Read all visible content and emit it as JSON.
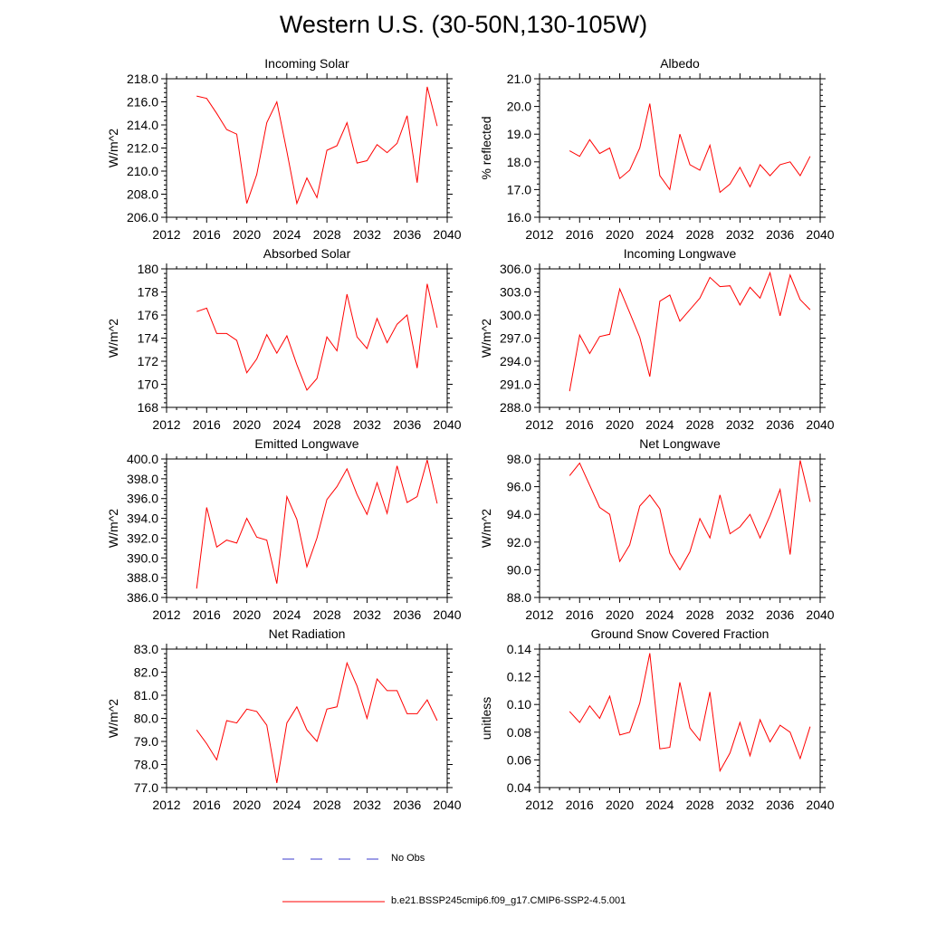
{
  "page": {
    "title": "Western U.S. (30-50N,130-105W)"
  },
  "legend": {
    "obs_label": "No Obs",
    "obs_color": "#3b3bcc",
    "model_label": "b.e21.BSSP245cmip6.f09_g17.CMIP6-SSP2-4.5.001",
    "model_color": "#ff0000"
  },
  "style": {
    "line_color": "#ff0000",
    "axis_color": "#000000"
  },
  "chart_data": [
    {
      "type": "line",
      "title": "Incoming Solar",
      "ylabel": "W/m^2",
      "xlim": [
        2012,
        2040
      ],
      "ylim": [
        206,
        218
      ],
      "xticks": [
        2012,
        2016,
        2020,
        2024,
        2028,
        2032,
        2036,
        2040
      ],
      "yticks": [
        206,
        208,
        210,
        212,
        214,
        216,
        218
      ],
      "ytick_decimals": 1,
      "x": [
        2015,
        2016,
        2017,
        2018,
        2019,
        2020,
        2021,
        2022,
        2023,
        2024,
        2025,
        2026,
        2027,
        2028,
        2029,
        2030,
        2031,
        2032,
        2033,
        2034,
        2035,
        2036,
        2037,
        2038,
        2039
      ],
      "series": [
        {
          "name": "b.e21.BSSP245cmip6.f09_g17.CMIP6-SSP2-4.5.001",
          "values": [
            216.5,
            216.3,
            215.0,
            213.6,
            213.2,
            207.2,
            209.7,
            214.2,
            216.0,
            211.7,
            207.2,
            209.4,
            207.7,
            211.8,
            212.2,
            214.2,
            210.7,
            210.9,
            212.3,
            211.6,
            212.4,
            214.8,
            209.0,
            217.3,
            213.9
          ]
        }
      ]
    },
    {
      "type": "line",
      "title": "Albedo",
      "ylabel": "% reflected",
      "xlim": [
        2012,
        2040
      ],
      "ylim": [
        16,
        21
      ],
      "xticks": [
        2012,
        2016,
        2020,
        2024,
        2028,
        2032,
        2036,
        2040
      ],
      "yticks": [
        16,
        17,
        18,
        19,
        20,
        21
      ],
      "ytick_decimals": 1,
      "x": [
        2015,
        2016,
        2017,
        2018,
        2019,
        2020,
        2021,
        2022,
        2023,
        2024,
        2025,
        2026,
        2027,
        2028,
        2029,
        2030,
        2031,
        2032,
        2033,
        2034,
        2035,
        2036,
        2037,
        2038,
        2039
      ],
      "series": [
        {
          "name": "b.e21.BSSP245cmip6.f09_g17.CMIP6-SSP2-4.5.001",
          "values": [
            18.4,
            18.2,
            18.8,
            18.3,
            18.5,
            17.4,
            17.7,
            18.5,
            20.1,
            17.5,
            17.0,
            19.0,
            17.9,
            17.7,
            18.6,
            16.9,
            17.2,
            17.8,
            17.1,
            17.9,
            17.5,
            17.9,
            18.0,
            17.5,
            18.2
          ]
        }
      ]
    },
    {
      "type": "line",
      "title": "Absorbed Solar",
      "ylabel": "W/m^2",
      "xlim": [
        2012,
        2040
      ],
      "ylim": [
        168,
        180
      ],
      "xticks": [
        2012,
        2016,
        2020,
        2024,
        2028,
        2032,
        2036,
        2040
      ],
      "yticks": [
        168,
        170,
        172,
        174,
        176,
        178,
        180
      ],
      "ytick_decimals": 0,
      "x": [
        2015,
        2016,
        2017,
        2018,
        2019,
        2020,
        2021,
        2022,
        2023,
        2024,
        2025,
        2026,
        2027,
        2028,
        2029,
        2030,
        2031,
        2032,
        2033,
        2034,
        2035,
        2036,
        2037,
        2038,
        2039
      ],
      "series": [
        {
          "name": "b.e21.BSSP245cmip6.f09_g17.CMIP6-SSP2-4.5.001",
          "values": [
            176.3,
            176.6,
            174.4,
            174.4,
            173.8,
            171.0,
            172.2,
            174.3,
            172.7,
            174.2,
            171.7,
            169.5,
            170.5,
            174.1,
            172.9,
            177.8,
            174.1,
            173.1,
            175.7,
            173.6,
            175.2,
            176.0,
            171.4,
            178.7,
            174.9
          ]
        }
      ]
    },
    {
      "type": "line",
      "title": "Incoming Longwave",
      "ylabel": "W/m^2",
      "xlim": [
        2012,
        2040
      ],
      "ylim": [
        288,
        306
      ],
      "xticks": [
        2012,
        2016,
        2020,
        2024,
        2028,
        2032,
        2036,
        2040
      ],
      "yticks": [
        288,
        291,
        294,
        297,
        300,
        303,
        306
      ],
      "ytick_decimals": 1,
      "x": [
        2015,
        2016,
        2017,
        2018,
        2019,
        2020,
        2021,
        2022,
        2023,
        2024,
        2025,
        2026,
        2027,
        2028,
        2029,
        2030,
        2031,
        2032,
        2033,
        2034,
        2035,
        2036,
        2037,
        2038,
        2039
      ],
      "series": [
        {
          "name": "b.e21.BSSP245cmip6.f09_g17.CMIP6-SSP2-4.5.001",
          "values": [
            290.1,
            297.4,
            295.0,
            297.2,
            297.5,
            303.4,
            300.3,
            297.1,
            292.0,
            301.8,
            302.6,
            299.2,
            300.7,
            302.2,
            304.9,
            303.7,
            303.8,
            301.3,
            303.6,
            302.2,
            305.5,
            299.9,
            305.2,
            302.0,
            300.7
          ]
        }
      ]
    },
    {
      "type": "line",
      "title": "Emitted Longwave",
      "ylabel": "W/m^2",
      "xlim": [
        2012,
        2040
      ],
      "ylim": [
        386,
        400
      ],
      "xticks": [
        2012,
        2016,
        2020,
        2024,
        2028,
        2032,
        2036,
        2040
      ],
      "yticks": [
        386,
        388,
        390,
        392,
        394,
        396,
        398,
        400
      ],
      "ytick_decimals": 1,
      "x": [
        2015,
        2016,
        2017,
        2018,
        2019,
        2020,
        2021,
        2022,
        2023,
        2024,
        2025,
        2026,
        2027,
        2028,
        2029,
        2030,
        2031,
        2032,
        2033,
        2034,
        2035,
        2036,
        2037,
        2038,
        2039
      ],
      "series": [
        {
          "name": "b.e21.BSSP245cmip6.f09_g17.CMIP6-SSP2-4.5.001",
          "values": [
            386.9,
            395.1,
            391.1,
            391.8,
            391.5,
            394.0,
            392.1,
            391.8,
            387.4,
            396.2,
            393.9,
            389.1,
            392.0,
            395.9,
            397.2,
            399.0,
            396.4,
            394.4,
            397.6,
            394.5,
            399.3,
            395.6,
            396.2,
            399.9,
            395.5
          ]
        }
      ]
    },
    {
      "type": "line",
      "title": "Net Longwave",
      "ylabel": "W/m^2",
      "xlim": [
        2012,
        2040
      ],
      "ylim": [
        88,
        98
      ],
      "xticks": [
        2012,
        2016,
        2020,
        2024,
        2028,
        2032,
        2036,
        2040
      ],
      "yticks": [
        88,
        90,
        92,
        94,
        96,
        98
      ],
      "ytick_decimals": 1,
      "x": [
        2015,
        2016,
        2017,
        2018,
        2019,
        2020,
        2021,
        2022,
        2023,
        2024,
        2025,
        2026,
        2027,
        2028,
        2029,
        2030,
        2031,
        2032,
        2033,
        2034,
        2035,
        2036,
        2037,
        2038,
        2039
      ],
      "series": [
        {
          "name": "b.e21.BSSP245cmip6.f09_g17.CMIP6-SSP2-4.5.001",
          "values": [
            96.8,
            97.7,
            96.1,
            94.5,
            94.0,
            90.6,
            91.8,
            94.6,
            95.4,
            94.4,
            91.2,
            90.0,
            91.3,
            93.7,
            92.3,
            95.4,
            92.6,
            93.1,
            94.0,
            92.3,
            93.9,
            95.8,
            91.1,
            97.9,
            94.9
          ]
        }
      ]
    },
    {
      "type": "line",
      "title": "Net Radiation",
      "ylabel": "W/m^2",
      "xlim": [
        2012,
        2040
      ],
      "ylim": [
        77,
        83
      ],
      "xticks": [
        2012,
        2016,
        2020,
        2024,
        2028,
        2032,
        2036,
        2040
      ],
      "yticks": [
        77,
        78,
        79,
        80,
        81,
        82,
        83
      ],
      "ytick_decimals": 1,
      "x": [
        2015,
        2016,
        2017,
        2018,
        2019,
        2020,
        2021,
        2022,
        2023,
        2024,
        2025,
        2026,
        2027,
        2028,
        2029,
        2030,
        2031,
        2032,
        2033,
        2034,
        2035,
        2036,
        2037,
        2038,
        2039
      ],
      "series": [
        {
          "name": "b.e21.BSSP245cmip6.f09_g17.CMIP6-SSP2-4.5.001",
          "values": [
            79.5,
            78.9,
            78.2,
            79.9,
            79.8,
            80.4,
            80.3,
            79.7,
            77.2,
            79.8,
            80.5,
            79.5,
            79.0,
            80.4,
            80.5,
            82.4,
            81.4,
            80.0,
            81.7,
            81.2,
            81.2,
            80.2,
            80.2,
            80.8,
            79.9
          ]
        }
      ]
    },
    {
      "type": "line",
      "title": "Ground Snow Covered Fraction",
      "ylabel": "unitless",
      "xlim": [
        2012,
        2040
      ],
      "ylim": [
        0.04,
        0.14
      ],
      "xticks": [
        2012,
        2016,
        2020,
        2024,
        2028,
        2032,
        2036,
        2040
      ],
      "yticks": [
        0.04,
        0.06,
        0.08,
        0.1,
        0.12,
        0.14
      ],
      "ytick_decimals": 2,
      "x": [
        2015,
        2016,
        2017,
        2018,
        2019,
        2020,
        2021,
        2022,
        2023,
        2024,
        2025,
        2026,
        2027,
        2028,
        2029,
        2030,
        2031,
        2032,
        2033,
        2034,
        2035,
        2036,
        2037,
        2038,
        2039
      ],
      "series": [
        {
          "name": "b.e21.BSSP245cmip6.f09_g17.CMIP6-SSP2-4.5.001",
          "values": [
            0.095,
            0.087,
            0.099,
            0.09,
            0.106,
            0.078,
            0.08,
            0.101,
            0.137,
            0.068,
            0.069,
            0.116,
            0.083,
            0.074,
            0.109,
            0.052,
            0.065,
            0.087,
            0.063,
            0.089,
            0.073,
            0.085,
            0.08,
            0.061,
            0.084
          ]
        }
      ]
    }
  ]
}
